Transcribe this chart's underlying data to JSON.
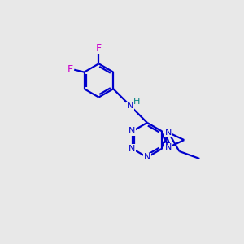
{
  "background_color": "#e8e8e8",
  "bond_color": "#0000cc",
  "F_color": "#cc00cc",
  "N_color": "#0000cc",
  "H_color": "#008080",
  "line_width": 1.6,
  "figsize": [
    3.0,
    3.0
  ],
  "dpi": 100,
  "xlim": [
    0,
    10
  ],
  "ylim": [
    0,
    10
  ]
}
